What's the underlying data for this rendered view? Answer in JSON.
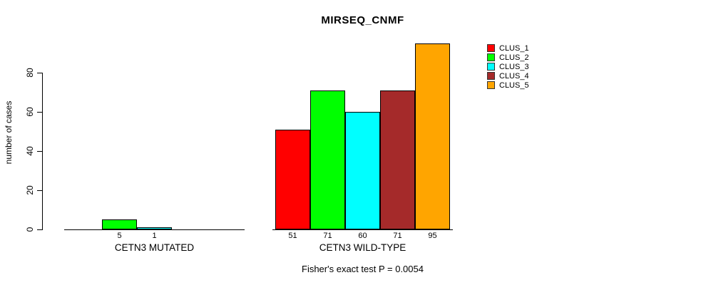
{
  "chart_data": {
    "type": "bar",
    "title": "MIRSEQ_CNMF",
    "ylabel": "number of cases",
    "yticks": [
      0,
      20,
      40,
      60,
      80
    ],
    "ylim": [
      0,
      95
    ],
    "grid": false,
    "legend_position": "right",
    "legend": [
      {
        "label": "CLUS_1",
        "color": "#FF0000"
      },
      {
        "label": "CLUS_2",
        "color": "#00FF00"
      },
      {
        "label": "CLUS_3",
        "color": "#00FFFF"
      },
      {
        "label": "CLUS_4",
        "color": "#A52A2A"
      },
      {
        "label": "CLUS_5",
        "color": "#FFA500"
      }
    ],
    "groups": [
      {
        "label": "CETN3 MUTATED",
        "values": [
          0,
          5,
          1,
          0,
          0
        ],
        "bar_labels": [
          "",
          "5",
          "1",
          "",
          ""
        ]
      },
      {
        "label": "CETN3 WILD-TYPE",
        "values": [
          51,
          71,
          60,
          71,
          95
        ],
        "bar_labels": [
          "51",
          "71",
          "60",
          "71",
          "95"
        ]
      }
    ],
    "footer": "Fisher's exact test P = 0.0054"
  }
}
